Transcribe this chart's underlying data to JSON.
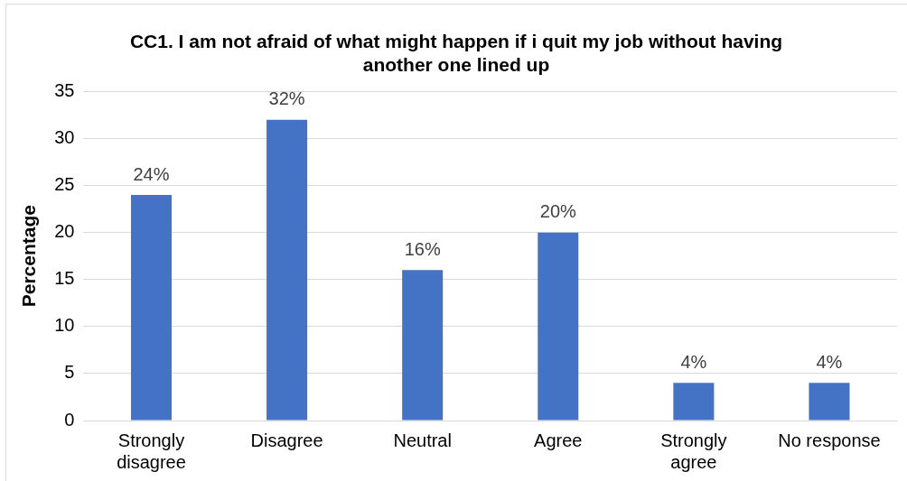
{
  "chart_data": {
    "type": "bar",
    "title": "CC1. I am not afraid of what might happen if i quit my job without having another one lined up",
    "ylabel": "Percentage",
    "categories": [
      "Strongly disagree",
      "Disagree",
      "Neutral",
      "Agree",
      "Strongly agree",
      "No response"
    ],
    "values": [
      24,
      32,
      16,
      20,
      4,
      4
    ],
    "value_labels": [
      "24%",
      "32%",
      "16%",
      "20%",
      "4%",
      "4%"
    ],
    "color": "#4472c4",
    "ylim": [
      0,
      35
    ],
    "yticks": [
      0,
      5,
      10,
      15,
      20,
      25,
      30,
      35
    ],
    "grid": "y",
    "legend": false
  }
}
